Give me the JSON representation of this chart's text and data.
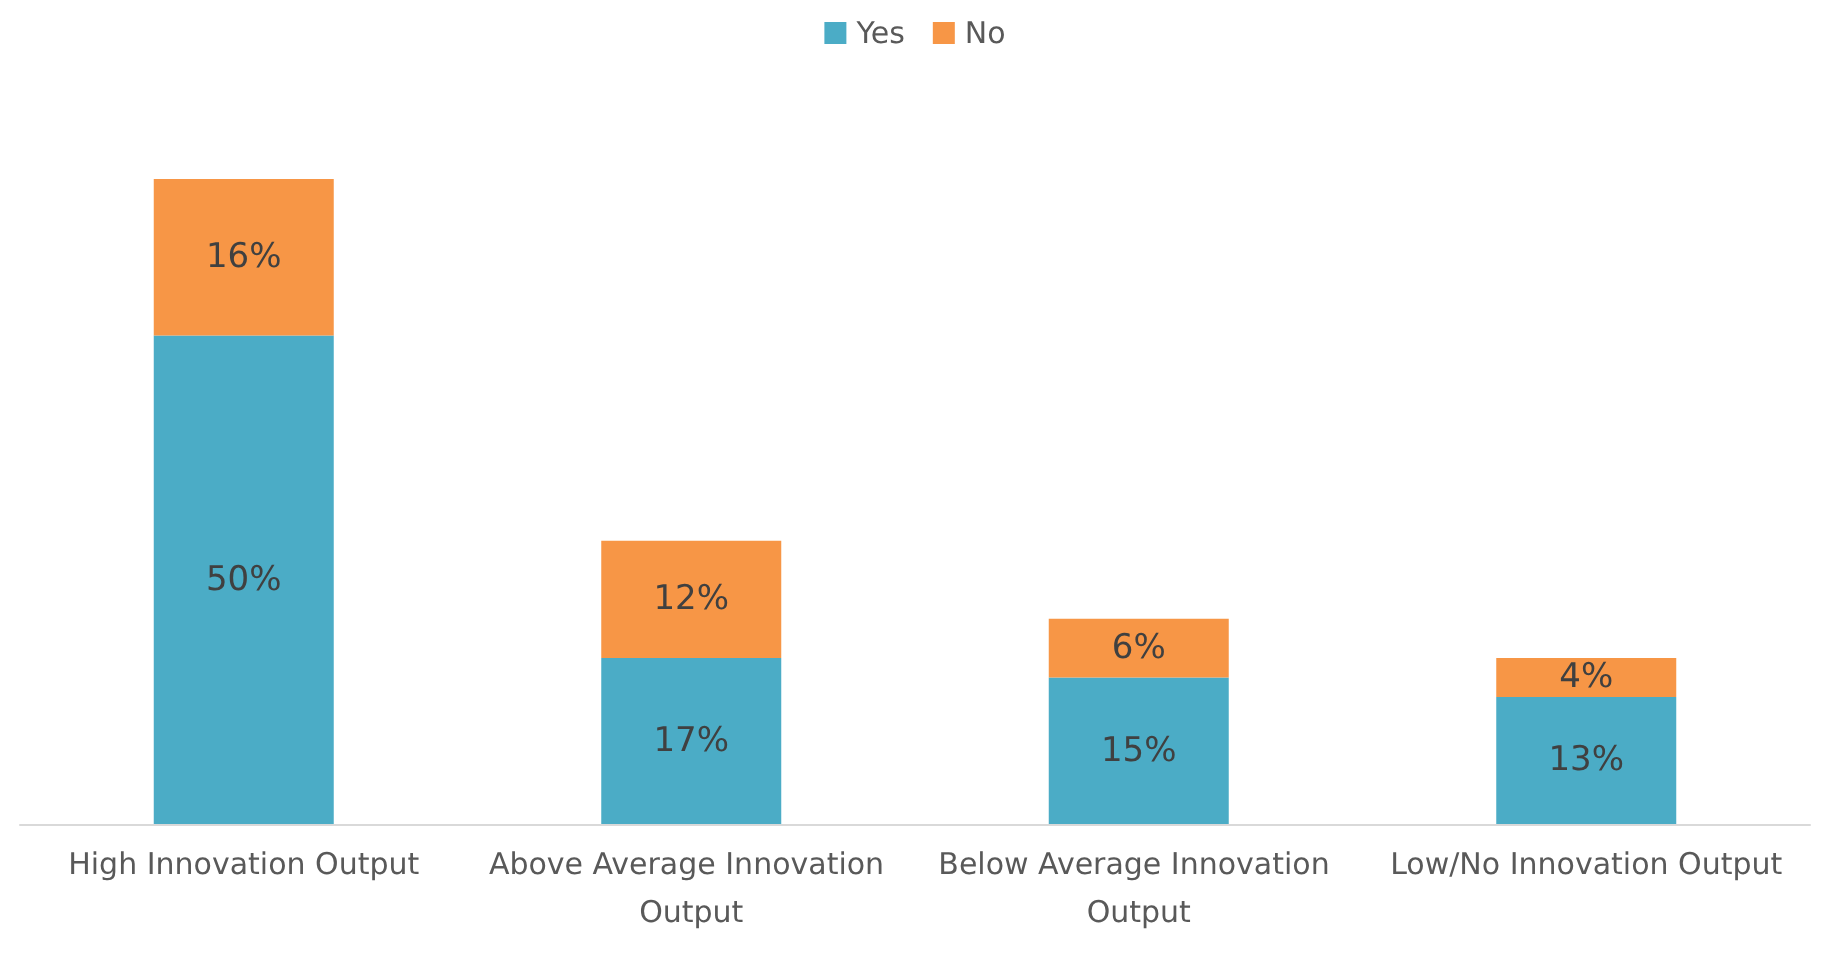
{
  "chart_data": {
    "type": "bar",
    "stacked": true,
    "legend": "top",
    "tick_labels": "x",
    "categories": [
      "High Innovation Output",
      "Above Average Innovation Output",
      "Below Average Innovation Output",
      "Low/No Innovation Output"
    ],
    "series": [
      {
        "name": "Yes",
        "color": "#4bacc6",
        "values": [
          50,
          17,
          15,
          13
        ],
        "value_labels": [
          "50%",
          "17%",
          "15%",
          "13%"
        ]
      },
      {
        "name": "No",
        "color": "#f79646",
        "values": [
          16,
          12,
          6,
          4
        ],
        "value_labels": [
          "16%",
          "12%",
          "6%",
          "4%"
        ]
      }
    ]
  }
}
